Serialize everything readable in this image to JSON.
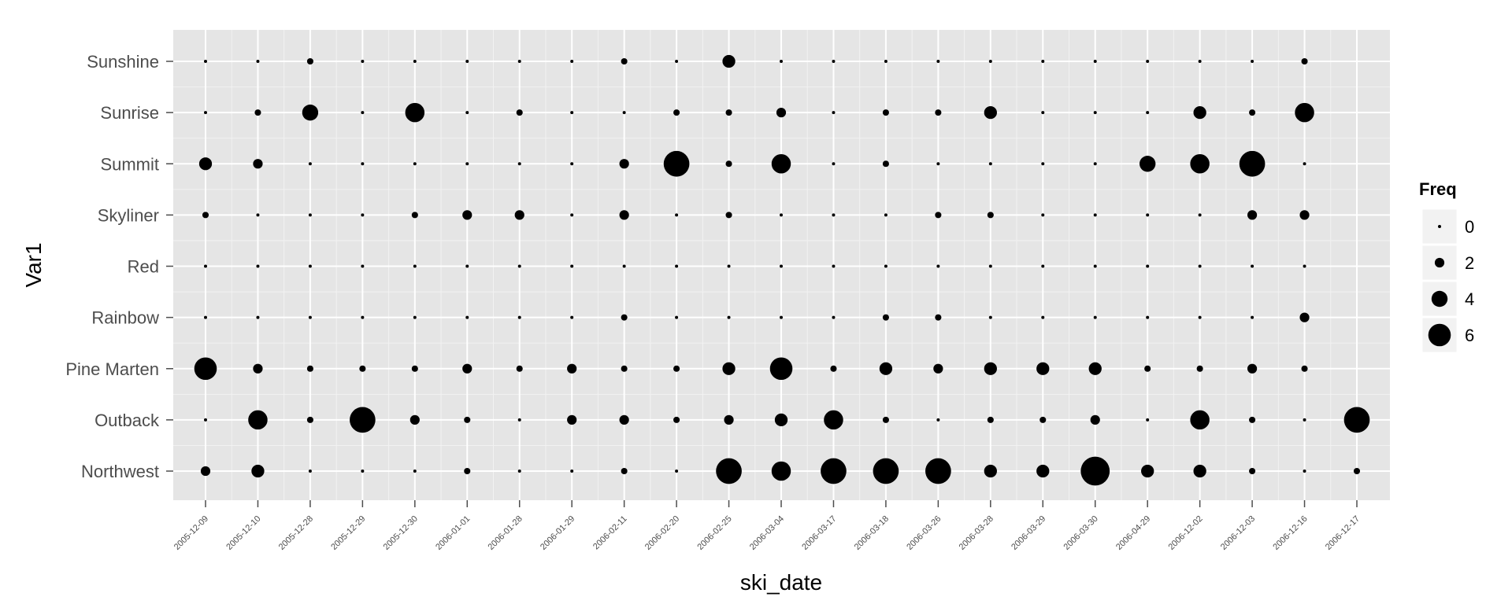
{
  "chart_data": {
    "type": "scatter",
    "xlabel": "ski_date",
    "ylabel": "Var1",
    "x_categories": [
      "2005-12-09",
      "2005-12-10",
      "2005-12-28",
      "2005-12-29",
      "2005-12-30",
      "2006-01-01",
      "2006-01-28",
      "2006-01-29",
      "2006-02-11",
      "2006-02-20",
      "2006-02-25",
      "2006-03-04",
      "2006-03-17",
      "2006-03-18",
      "2006-03-26",
      "2006-03-28",
      "2006-03-29",
      "2006-03-30",
      "2006-04-29",
      "2006-12-02",
      "2006-12-03",
      "2006-12-16",
      "2006-12-17"
    ],
    "y_categories": [
      "Northwest",
      "Outback",
      "Pine Marten",
      "Rainbow",
      "Red",
      "Skyliner",
      "Summit",
      "Sunrise",
      "Sunshine"
    ],
    "size_variable": "Freq",
    "series": [
      {
        "name": "Sunshine",
        "values": [
          0,
          0,
          1,
          0,
          0,
          0,
          0,
          0,
          1,
          0,
          3,
          0,
          0,
          0,
          0,
          0,
          0,
          0,
          0,
          0,
          0,
          1,
          null
        ]
      },
      {
        "name": "Sunrise",
        "values": [
          0,
          1,
          4,
          0,
          5,
          0,
          1,
          0,
          0,
          1,
          1,
          2,
          0,
          1,
          1,
          3,
          0,
          0,
          0,
          3,
          1,
          5,
          null
        ]
      },
      {
        "name": "Summit",
        "values": [
          3,
          2,
          0,
          0,
          0,
          0,
          0,
          0,
          2,
          7,
          1,
          5,
          0,
          1,
          0,
          0,
          0,
          0,
          4,
          5,
          7,
          0,
          null
        ]
      },
      {
        "name": "Skyliner",
        "values": [
          1,
          0,
          0,
          0,
          1,
          2,
          2,
          0,
          2,
          0,
          1,
          0,
          0,
          0,
          1,
          1,
          0,
          0,
          0,
          0,
          2,
          2,
          null
        ]
      },
      {
        "name": "Red",
        "values": [
          0,
          0,
          0,
          0,
          0,
          0,
          0,
          0,
          0,
          0,
          0,
          0,
          0,
          0,
          0,
          0,
          0,
          0,
          0,
          0,
          0,
          0,
          null
        ]
      },
      {
        "name": "Rainbow",
        "values": [
          0,
          0,
          0,
          0,
          0,
          0,
          0,
          0,
          1,
          0,
          0,
          0,
          0,
          1,
          1,
          0,
          0,
          0,
          0,
          0,
          0,
          2,
          null
        ]
      },
      {
        "name": "Pine Marten",
        "values": [
          6,
          2,
          1,
          1,
          1,
          2,
          1,
          2,
          1,
          1,
          3,
          6,
          1,
          3,
          2,
          3,
          3,
          3,
          1,
          1,
          2,
          1,
          null
        ]
      },
      {
        "name": "Outback",
        "values": [
          0,
          5,
          1,
          7,
          2,
          1,
          0,
          2,
          2,
          1,
          2,
          3,
          5,
          1,
          0,
          1,
          1,
          2,
          0,
          5,
          1,
          0,
          7
        ]
      },
      {
        "name": "Northwest",
        "values": [
          2,
          3,
          0,
          0,
          0,
          1,
          0,
          0,
          1,
          0,
          7,
          5,
          7,
          7,
          7,
          3,
          3,
          8,
          3,
          3,
          1,
          0,
          1
        ]
      }
    ],
    "legend": {
      "title": "Freq",
      "position": "right",
      "entries": [
        0,
        2,
        4,
        6
      ]
    },
    "grid": true
  }
}
